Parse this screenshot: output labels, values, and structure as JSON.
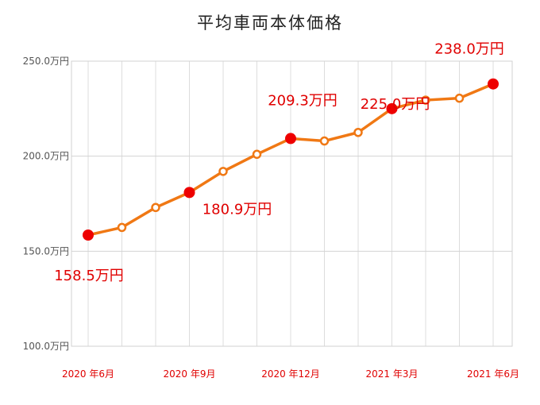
{
  "chart_data": {
    "type": "line",
    "title": "平均車両本体価格",
    "xlabel": "",
    "ylabel": "",
    "ylim": [
      100,
      250
    ],
    "y_ticks": [
      "100.0万円",
      "150.0万円",
      "200.0万円",
      "250.0万円"
    ],
    "y_tick_values": [
      100,
      150,
      200,
      250
    ],
    "x_tick_labels": [
      "2020 年6月",
      "2020 年9月",
      "2020 年12月",
      "2021 年3月",
      "2021 年6月"
    ],
    "x_tick_positions": [
      0,
      3,
      6,
      9,
      12
    ],
    "grid": true,
    "series": [
      {
        "color": "#f07814",
        "values": [
          158.5,
          162.5,
          173.0,
          180.9,
          192.0,
          201.0,
          209.3,
          208.0,
          212.5,
          225.0,
          229.5,
          230.5,
          238.0
        ],
        "highlight_indices": [
          0,
          3,
          6,
          9,
          12
        ],
        "highlight_color": "#ee0000"
      }
    ],
    "data_labels": [
      {
        "index": 0,
        "text": "158.5万円",
        "side": "below"
      },
      {
        "index": 3,
        "text": "180.9万円",
        "side": "below"
      },
      {
        "index": 6,
        "text": "209.3万円",
        "side": "above"
      },
      {
        "index": 9,
        "text": "225.0万円",
        "side": "below"
      },
      {
        "index": 12,
        "text": "238.0万円",
        "side": "above"
      }
    ]
  }
}
